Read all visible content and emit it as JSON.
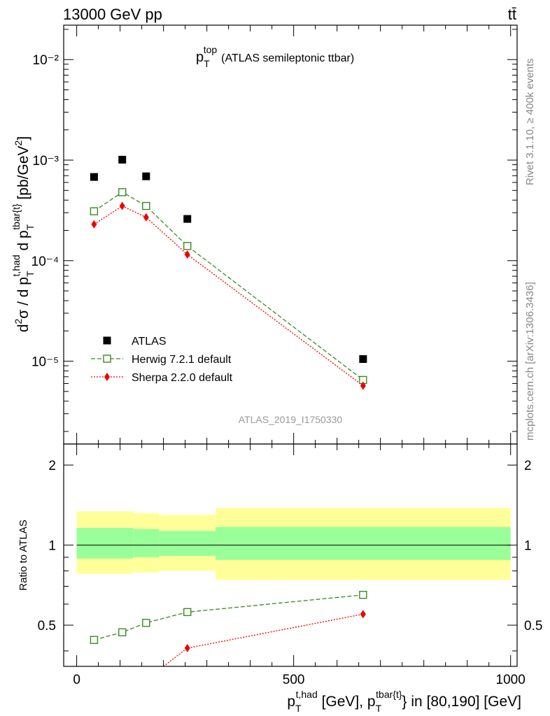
{
  "header": {
    "left": "13000 GeV pp",
    "right": "tt̄"
  },
  "side_labels": {
    "rivet": "Rivet 3.1.10, ≥ 400k events",
    "mcplots": "mcplots.cern.ch [arXiv:1306.3436]"
  },
  "plot_title": {
    "main": "p",
    "sup": "top",
    "sub": "T",
    "rest": "(ATLAS semileptonic ttbar)"
  },
  "analysis_id": "ATLAS_2019_I1750330",
  "colors": {
    "atlas": "#000000",
    "herwig": "#3a8a1e",
    "sherpa": "#ee0000",
    "band_outer": "#ffff99",
    "band_inner": "#99ff99"
  },
  "chart_data": [
    {
      "type": "scatter",
      "panel": "main",
      "yscale": "log",
      "xlim": [
        -30,
        1015
      ],
      "ylim": [
        1.5e-06,
        0.022
      ],
      "ylabel": "d²σ / d p_T^{t,had} d p_T^{tbar{t}} [pb/GeV²]",
      "ytick_labels": [
        "10⁻⁵",
        "10⁻⁴",
        "10⁻³",
        "10⁻²"
      ],
      "legend_position": "bottom-left",
      "series": [
        {
          "name": "ATLAS",
          "marker": "filled-square",
          "x": [
            40,
            105,
            160,
            255,
            660
          ],
          "y": [
            0.00068,
            0.00101,
            0.00069,
            0.00026,
            1.05e-05
          ]
        },
        {
          "name": "Herwig 7.2.1 default",
          "marker": "open-square",
          "line": "dashed",
          "x": [
            40,
            105,
            160,
            255,
            660
          ],
          "y": [
            0.00031,
            0.00048,
            0.00035,
            0.00014,
            6.5e-06
          ]
        },
        {
          "name": "Sherpa 2.2.0 default",
          "marker": "diamond",
          "line": "dotted",
          "x": [
            40,
            105,
            160,
            255,
            660
          ],
          "y": [
            0.00023,
            0.00035,
            0.00027,
            0.000115,
            5.7e-06
          ]
        }
      ]
    },
    {
      "type": "line",
      "panel": "ratio",
      "yscale": "log",
      "xlim": [
        -30,
        1015
      ],
      "ylim": [
        0.35,
        2.4
      ],
      "xlabel": "p_T^{t,had} [GeV], p_T^{tbar{t}} in [80,190] [GeV]",
      "ylabel": "Ratio to ATLAS",
      "xticks": [
        0,
        500,
        1000
      ],
      "yticks": [
        0.5,
        1,
        2
      ],
      "bands": [
        {
          "x0": 0,
          "x1": 130,
          "outer": [
            0.78,
            1.34
          ],
          "inner": [
            0.89,
            1.16
          ]
        },
        {
          "x0": 130,
          "x1": 190,
          "outer": [
            0.79,
            1.32
          ],
          "inner": [
            0.9,
            1.15
          ]
        },
        {
          "x0": 190,
          "x1": 320,
          "outer": [
            0.8,
            1.3
          ],
          "inner": [
            0.91,
            1.13
          ]
        },
        {
          "x0": 320,
          "x1": 1000,
          "outer": [
            0.74,
            1.38
          ],
          "inner": [
            0.88,
            1.17
          ]
        }
      ],
      "series": [
        {
          "name": "Herwig 7.2.1 default",
          "x": [
            40,
            105,
            160,
            255,
            660
          ],
          "y": [
            0.44,
            0.47,
            0.51,
            0.56,
            0.65
          ]
        },
        {
          "name": "Sherpa 2.2.0 default",
          "x": [
            200,
            255,
            660
          ],
          "y": [
            0.35,
            0.41,
            0.55
          ]
        }
      ]
    }
  ]
}
